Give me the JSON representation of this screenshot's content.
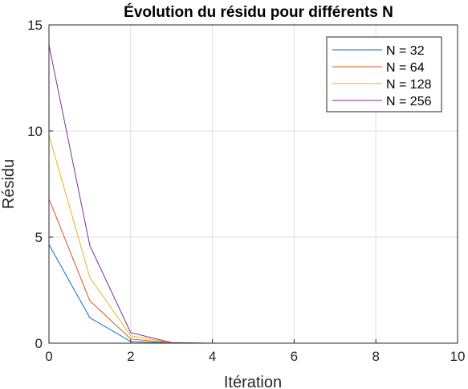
{
  "chart_data": {
    "type": "line",
    "title": "Évolution du résidu pour différents N",
    "xlabel": "Itération",
    "ylabel": "Résidu",
    "xlim": [
      0,
      10
    ],
    "ylim": [
      0,
      15
    ],
    "xticks": [
      0,
      2,
      4,
      6,
      8,
      10
    ],
    "yticks": [
      0,
      5,
      10,
      15
    ],
    "grid": true,
    "legend_position": "top-right",
    "x": [
      0,
      1,
      2,
      3,
      4,
      5,
      6,
      7,
      8,
      9,
      10
    ],
    "series": [
      {
        "name": "N = 32",
        "color": "#0072bd",
        "values": [
          4.65,
          1.2,
          0.08,
          0.0,
          0.0,
          0.0,
          0.0,
          0.0,
          0.0,
          0.0,
          0.0
        ]
      },
      {
        "name": "N = 64",
        "color": "#d95319",
        "values": [
          6.8,
          2.0,
          0.2,
          0.01,
          0.0,
          0.0,
          0.0,
          0.0,
          0.0,
          0.0,
          0.0
        ]
      },
      {
        "name": "N = 128",
        "color": "#edb120",
        "values": [
          9.8,
          3.1,
          0.35,
          0.02,
          0.0,
          0.0,
          0.0,
          0.0,
          0.0,
          0.0,
          0.0
        ]
      },
      {
        "name": "N = 256",
        "color": "#7e2f8e",
        "values": [
          14.05,
          4.6,
          0.5,
          0.03,
          0.0,
          0.0,
          0.0,
          0.0,
          0.0,
          0.0,
          0.0
        ]
      }
    ]
  }
}
